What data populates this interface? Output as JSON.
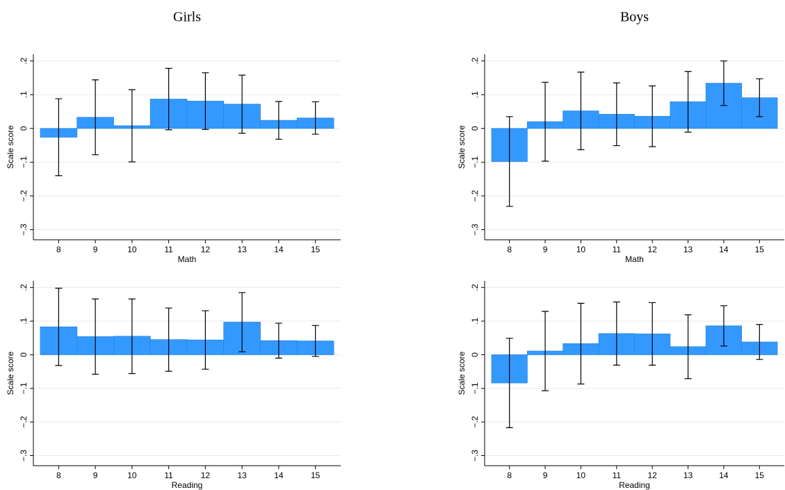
{
  "chart_data": [
    {
      "type": "bar",
      "title": "Girls",
      "x_label": "Math",
      "y_label": "Scale score",
      "categories": [
        "8",
        "9",
        "10",
        "11",
        "12",
        "13",
        "14",
        "15"
      ],
      "values": [
        -0.026,
        0.033,
        0.008,
        0.087,
        0.081,
        0.072,
        0.024,
        0.031
      ],
      "errors": [
        0.114,
        0.111,
        0.107,
        0.091,
        0.084,
        0.086,
        0.056,
        0.048
      ],
      "color": "#3399ff",
      "ylim": [
        -0.33,
        0.22
      ],
      "yticks": [
        {
          "value": -0.3,
          "label": "−.3"
        },
        {
          "value": -0.2,
          "label": "−.2"
        },
        {
          "value": -0.1,
          "label": "−.1"
        },
        0,
        {
          "value": 0.1,
          "label": ".1"
        },
        {
          "value": 0.2,
          "label": ".2"
        }
      ],
      "grid": true
    },
    {
      "type": "bar",
      "title": "Boys",
      "x_label": "Math",
      "y_label": "Scale score",
      "categories": [
        "8",
        "9",
        "10",
        "11",
        "12",
        "13",
        "14",
        "15"
      ],
      "values": [
        -0.098,
        0.02,
        0.052,
        0.042,
        0.036,
        0.079,
        0.134,
        0.091
      ],
      "errors": [
        0.133,
        0.117,
        0.115,
        0.093,
        0.09,
        0.09,
        0.066,
        0.056
      ],
      "color": "#3399ff",
      "ylim": [
        -0.33,
        0.22
      ],
      "yticks": [
        {
          "value": -0.3,
          "label": "−.3"
        },
        {
          "value": -0.2,
          "label": "−.2"
        },
        {
          "value": -0.1,
          "label": "−.1"
        },
        0,
        {
          "value": 0.1,
          "label": ".1"
        },
        {
          "value": 0.2,
          "label": ".2"
        }
      ],
      "grid": true
    },
    {
      "type": "bar",
      "x_label": "Reading",
      "y_label": "Scale score",
      "categories": [
        "8",
        "9",
        "10",
        "11",
        "12",
        "13",
        "14",
        "15"
      ],
      "values": [
        0.083,
        0.054,
        0.055,
        0.045,
        0.044,
        0.097,
        0.042,
        0.041
      ],
      "errors": [
        0.115,
        0.112,
        0.111,
        0.094,
        0.087,
        0.088,
        0.052,
        0.046
      ],
      "color": "#3399ff",
      "ylim": [
        -0.33,
        0.22
      ],
      "yticks": [
        {
          "value": -0.3,
          "label": "−.3"
        },
        {
          "value": -0.2,
          "label": "−.2"
        },
        {
          "value": -0.1,
          "label": "−.1"
        },
        0,
        {
          "value": 0.1,
          "label": ".1"
        },
        {
          "value": 0.2,
          "label": ".2"
        }
      ],
      "grid": true
    },
    {
      "type": "bar",
      "x_label": "Reading",
      "y_label": "Scale score",
      "categories": [
        "8",
        "9",
        "10",
        "11",
        "12",
        "13",
        "14",
        "15"
      ],
      "values": [
        -0.084,
        0.011,
        0.033,
        0.063,
        0.062,
        0.024,
        0.086,
        0.038
      ],
      "errors": [
        0.133,
        0.118,
        0.12,
        0.094,
        0.093,
        0.095,
        0.06,
        0.052
      ],
      "color": "#3399ff",
      "ylim": [
        -0.33,
        0.22
      ],
      "yticks": [
        {
          "value": -0.3,
          "label": "−.3"
        },
        {
          "value": -0.2,
          "label": "−.2"
        },
        {
          "value": -0.1,
          "label": "−.1"
        },
        0,
        {
          "value": 0.1,
          "label": ".1"
        },
        {
          "value": 0.2,
          "label": ".2"
        }
      ],
      "grid": true
    }
  ]
}
